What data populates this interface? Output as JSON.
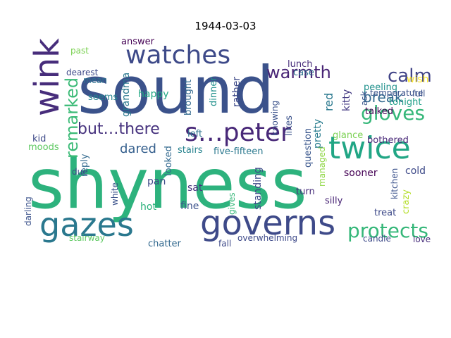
{
  "title": "1944-03-03",
  "words": [
    {
      "text": "shyness",
      "color": "#2db27d"
    },
    {
      "text": "sound",
      "color": "#3b528b"
    },
    {
      "text": "watches",
      "color": "#3e4a89"
    },
    {
      "text": "governs",
      "color": "#3e4a89"
    },
    {
      "text": "gazes",
      "color": "#2a788e"
    },
    {
      "text": "twice",
      "color": "#21a685"
    },
    {
      "text": "s…peter",
      "color": "#482878"
    },
    {
      "text": "wink",
      "color": "#472d7b"
    },
    {
      "text": "protects",
      "color": "#35b779"
    },
    {
      "text": "gloves",
      "color": "#35b779"
    },
    {
      "text": "warmth",
      "color": "#482475"
    },
    {
      "text": "calm",
      "color": "#414487"
    },
    {
      "text": "remarked",
      "color": "#3aba76"
    },
    {
      "text": "but…there",
      "color": "#46327e"
    },
    {
      "text": "break",
      "color": "#31688e"
    },
    {
      "text": "dared",
      "color": "#355f8d"
    },
    {
      "text": "red",
      "color": "#2a788e"
    },
    {
      "text": "kitty",
      "color": "#443a83"
    },
    {
      "text": "answer",
      "color": "#440154"
    },
    {
      "text": "past",
      "color": "#7ad151"
    },
    {
      "text": "dearest",
      "color": "#3e4a89"
    },
    {
      "text": "mean",
      "color": "#2c728e"
    },
    {
      "text": "lunch",
      "color": "#472c7a"
    },
    {
      "text": "case",
      "color": "#2d708e"
    },
    {
      "text": "peeling",
      "color": "#21918c"
    },
    {
      "text": "wish",
      "color": "#fde725"
    },
    {
      "text": "full",
      "color": "#3b528b"
    },
    {
      "text": "temperature",
      "color": "#3b528b"
    },
    {
      "text": "tonight",
      "color": "#1f9f88"
    },
    {
      "text": "talked",
      "color": "#440154"
    },
    {
      "text": "ask",
      "color": "#39568c"
    },
    {
      "text": "likes",
      "color": "#3b528b"
    },
    {
      "text": "question",
      "color": "#39568c"
    },
    {
      "text": "pretty",
      "color": "#287c8e"
    },
    {
      "text": "knowing",
      "color": "#3b528b"
    },
    {
      "text": "dinner",
      "color": "#21918c"
    },
    {
      "text": "rather",
      "color": "#3e4a89"
    },
    {
      "text": "brought",
      "color": "#31688e"
    },
    {
      "text": "happy",
      "color": "#22a884"
    },
    {
      "text": "grandma",
      "color": "#2a788e"
    },
    {
      "text": "seems",
      "color": "#26828e"
    },
    {
      "text": "kid",
      "color": "#3e4a89"
    },
    {
      "text": "moods",
      "color": "#5ec962"
    },
    {
      "text": "glance",
      "color": "#7ad151"
    },
    {
      "text": "bothered",
      "color": "#482878"
    },
    {
      "text": "left",
      "color": "#2c728e"
    },
    {
      "text": "stairs",
      "color": "#26828e"
    },
    {
      "text": "five-fifteen",
      "color": "#2a788e"
    },
    {
      "text": "looked",
      "color": "#31688e"
    },
    {
      "text": "reply",
      "color": "#31688e"
    },
    {
      "text": "darling",
      "color": "#3b528b"
    },
    {
      "text": "due",
      "color": "#3e4a89"
    },
    {
      "text": "white",
      "color": "#3b528b"
    },
    {
      "text": "pan",
      "color": "#3e4a89"
    },
    {
      "text": "hot",
      "color": "#2db27d"
    },
    {
      "text": "sat",
      "color": "#46327e"
    },
    {
      "text": "fine",
      "color": "#3b528b"
    },
    {
      "text": "gives",
      "color": "#35b779"
    },
    {
      "text": "standing",
      "color": "#3e4a89"
    },
    {
      "text": "managed",
      "color": "#8fd744"
    },
    {
      "text": "sooner",
      "color": "#440154"
    },
    {
      "text": "cold",
      "color": "#3e4a89"
    },
    {
      "text": "turn",
      "color": "#472d7b"
    },
    {
      "text": "silly",
      "color": "#482475"
    },
    {
      "text": "crazy",
      "color": "#b5de2b"
    },
    {
      "text": "treat",
      "color": "#3e4a89"
    },
    {
      "text": "kitchen",
      "color": "#3b528b"
    },
    {
      "text": "stairway",
      "color": "#5ec962"
    },
    {
      "text": "chatter",
      "color": "#31688e"
    },
    {
      "text": "fall",
      "color": "#3e4a89"
    },
    {
      "text": "overwhelming",
      "color": "#3e4a89"
    },
    {
      "text": "candle",
      "color": "#3e4a89"
    },
    {
      "text": "love",
      "color": "#472d7b"
    }
  ]
}
